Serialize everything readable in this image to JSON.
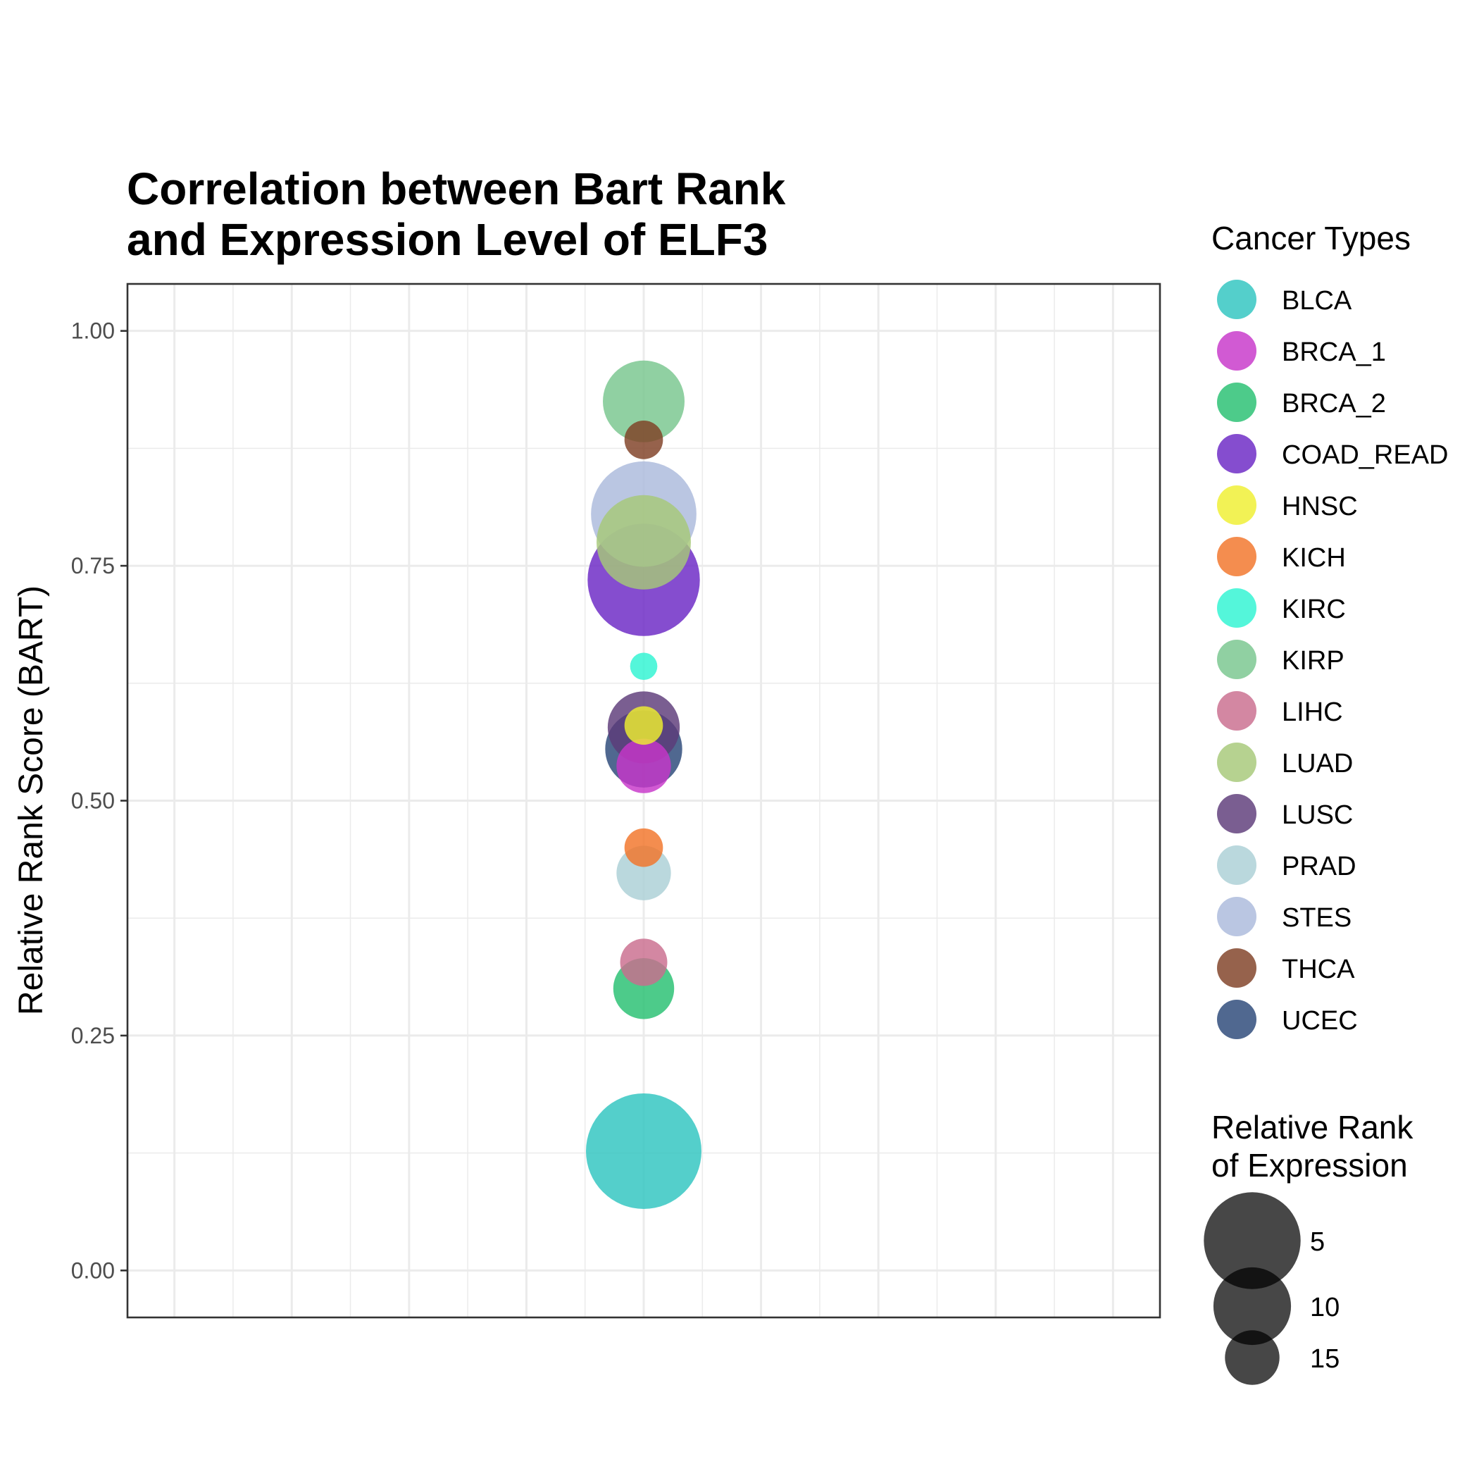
{
  "chart_data": {
    "type": "scatter",
    "title": [
      "Correlation between Bart Rank",
      "and Expression Level of ELF3"
    ],
    "xlabel": "",
    "ylabel": "Relative Rank Score (BART)",
    "ylim": [
      -0.05,
      1.05
    ],
    "yticks": [
      0,
      0.25,
      0.5,
      0.75,
      1.0
    ],
    "ytick_labels": [
      "0.00",
      "0.25",
      "0.50",
      "0.75",
      "1.00"
    ],
    "grid": true,
    "color_legend": {
      "title": "Cancer Types",
      "placement": "right"
    },
    "size_legend": {
      "title": [
        "Relative Rank",
        "of Expression"
      ],
      "placement": "right",
      "entries": [
        {
          "label": "5",
          "value": 5
        },
        {
          "label": "10",
          "value": 10
        },
        {
          "label": "15",
          "value": 15
        }
      ]
    },
    "series": [
      {
        "name": "BLCA",
        "color": "#2ec4c0",
        "y": 0.127,
        "expr_rank": 1
      },
      {
        "name": "BRCA_1",
        "color": "#c736c9",
        "y": 0.537,
        "expr_rank": 15
      },
      {
        "name": "BRCA_2",
        "color": "#26c070",
        "y": 0.3,
        "expr_rank": 14
      },
      {
        "name": "COAD_READ",
        "color": "#6a26c4",
        "y": 0.735,
        "expr_rank": 2
      },
      {
        "name": "HNSC",
        "color": "#efef2f",
        "y": 0.58,
        "expr_rank": 17
      },
      {
        "name": "KICH",
        "color": "#f27428",
        "y": 0.45,
        "expr_rank": 17
      },
      {
        "name": "KIRC",
        "color": "#2ef4d2",
        "y": 0.643,
        "expr_rank": 18
      },
      {
        "name": "KIRP",
        "color": "#77c68e",
        "y": 0.925,
        "expr_rank": 10
      },
      {
        "name": "LIHC",
        "color": "#c96c8e",
        "y": 0.328,
        "expr_rank": 16
      },
      {
        "name": "LUAD",
        "color": "#a6c878",
        "y": 0.775,
        "expr_rank": 7
      },
      {
        "name": "LUSC",
        "color": "#5d3b79",
        "y": 0.578,
        "expr_rank": 12
      },
      {
        "name": "PRAD",
        "color": "#abcfd6",
        "y": 0.423,
        "expr_rank": 15
      },
      {
        "name": "STES",
        "color": "#abb9dc",
        "y": 0.805,
        "expr_rank": 4
      },
      {
        "name": "THCA",
        "color": "#7f3f24",
        "y": 0.884,
        "expr_rank": 17
      },
      {
        "name": "UCEC",
        "color": "#2a4777",
        "y": 0.555,
        "expr_rank": 11
      }
    ]
  }
}
